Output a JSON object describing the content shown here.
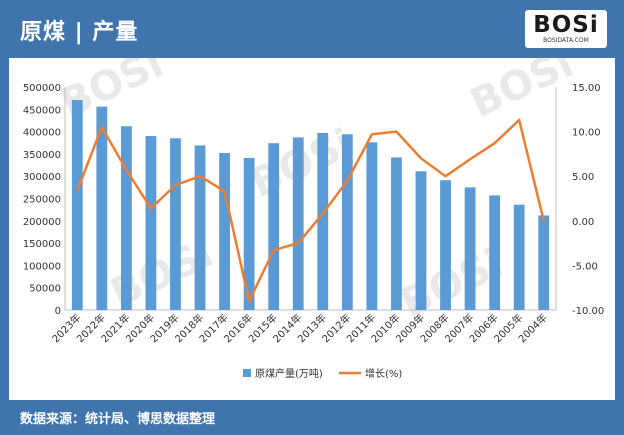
{
  "header": {
    "title": "原煤 | 产量",
    "logo_text": "BOSi",
    "logo_sub": "BOSIDATA.COM"
  },
  "footer": {
    "source": "数据来源：统计局、博思数据整理"
  },
  "colors": {
    "frame": "#3f74ad",
    "bar": "#5b9bd5",
    "line": "#ed7d31"
  },
  "chart_data": {
    "type": "bar",
    "categories": [
      "2023年",
      "2022年",
      "2021年",
      "2020年",
      "2019年",
      "2018年",
      "2017年",
      "2016年",
      "2015年",
      "2014年",
      "2013年",
      "2012年",
      "2011年",
      "2010年",
      "2009年",
      "2008年",
      "2007年",
      "2006年",
      "2005年",
      "2004年"
    ],
    "series": [
      {
        "name": "原煤产量(万吨)",
        "type": "bar",
        "axis": "left",
        "values": [
          471000,
          456000,
          412000,
          390000,
          385000,
          369000,
          352000,
          341000,
          374000,
          387000,
          397000,
          394000,
          376000,
          342000,
          311000,
          291000,
          275000,
          257000,
          236000,
          212000
        ]
      },
      {
        "name": "增长(%)",
        "type": "line",
        "axis": "right",
        "values": [
          3.4,
          10.5,
          5.7,
          1.4,
          4.0,
          5.0,
          3.3,
          -9.0,
          -3.3,
          -2.5,
          0.8,
          4.5,
          9.7,
          10.0,
          7.0,
          5.0,
          6.9,
          8.7,
          11.3,
          0.0
        ]
      }
    ],
    "ylim_left": [
      0,
      500000
    ],
    "yticks_left": [
      "0",
      "50000",
      "100000",
      "150000",
      "200000",
      "250000",
      "300000",
      "350000",
      "400000",
      "450000",
      "500000"
    ],
    "ylim_right": [
      -10,
      15
    ],
    "yticks_right": [
      "-10.00",
      "-5.00",
      "0.00",
      "5.00",
      "10.00",
      "15.00"
    ],
    "grid": false,
    "legend_position": "bottom"
  }
}
